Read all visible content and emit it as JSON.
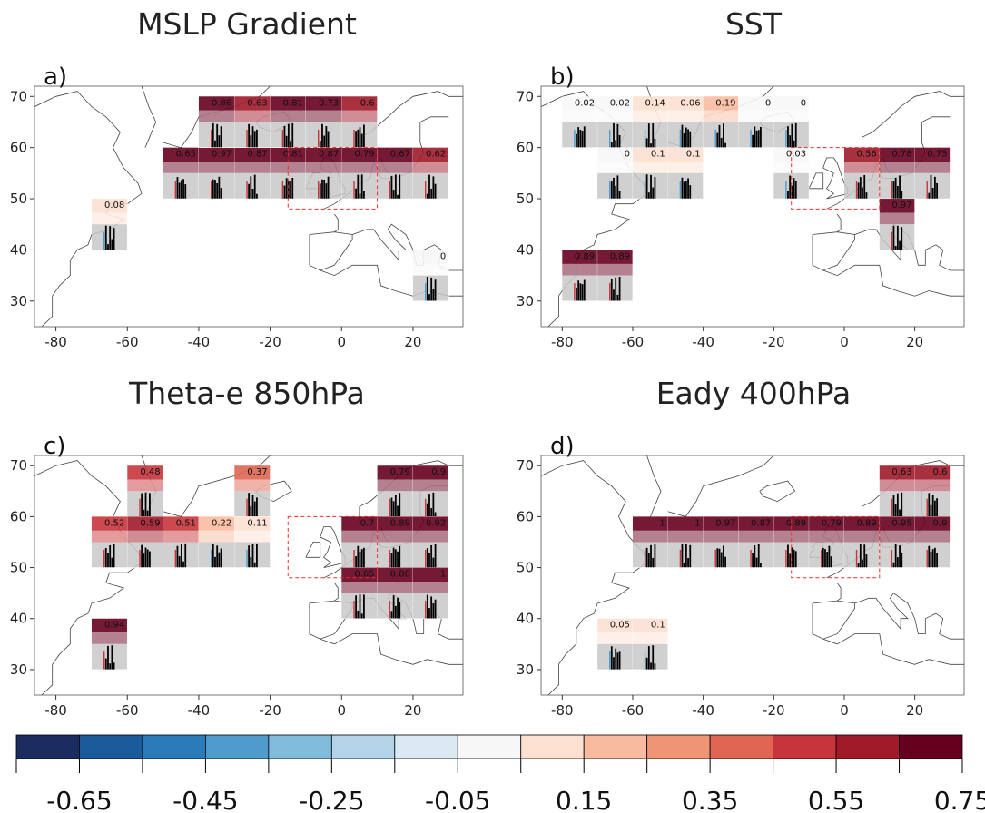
{
  "figure": {
    "panel_titles": [
      "MSLP Gradient",
      "SST",
      "Theta-e 850hPa",
      "Eady 400hPa"
    ],
    "panel_letters": [
      "a)",
      "b)",
      "c)",
      "d)"
    ]
  },
  "chart_data": {
    "type": "heatmap",
    "description_free": true,
    "lon_ticks": [
      -80,
      -60,
      -40,
      -20,
      0,
      20
    ],
    "lat_ticks": [
      30,
      40,
      50,
      60,
      70
    ],
    "xlim": [
      -86,
      34
    ],
    "ylim": [
      25,
      72
    ],
    "colorbar": {
      "ticks": [
        "-0.65",
        "-0.45",
        "-0.25",
        "-0.05",
        "0.15",
        "0.35",
        "0.55",
        "0.75"
      ],
      "colors": [
        "#1b2c61",
        "#1b5b9b",
        "#2b7bba",
        "#4f9bcb",
        "#82bcdc",
        "#b3d4e8",
        "#dbe9f3",
        "#f7f7f7",
        "#fce0d0",
        "#f9bba0",
        "#f09476",
        "#de6653",
        "#c7353c",
        "#a01a2a",
        "#67001f"
      ],
      "edges": [
        -0.75,
        -0.65,
        -0.55,
        -0.45,
        -0.35,
        -0.25,
        -0.15,
        -0.05,
        0.05,
        0.15,
        0.25,
        0.35,
        0.45,
        0.55,
        0.65,
        0.75
      ]
    },
    "panels": [
      {
        "title": "MSLP Gradient",
        "letter": "a)",
        "target_box": {
          "lon": [
            -15,
            10
          ],
          "lat": [
            48,
            60
          ]
        },
        "cells": [
          {
            "lon": -50,
            "lat": 55,
            "value": 0.65
          },
          {
            "lon": -40,
            "lat": 55,
            "value": 0.97
          },
          {
            "lon": -30,
            "lat": 55,
            "value": 0.87
          },
          {
            "lon": -20,
            "lat": 55,
            "value": 0.81
          },
          {
            "lon": -10,
            "lat": 55,
            "value": 0.87
          },
          {
            "lon": 0,
            "lat": 55,
            "value": 0.79
          },
          {
            "lon": 10,
            "lat": 55,
            "value": 0.67
          },
          {
            "lon": 20,
            "lat": 55,
            "value": 0.62
          },
          {
            "lon": -40,
            "lat": 65,
            "value": 0.86
          },
          {
            "lon": -30,
            "lat": 65,
            "value": 0.63
          },
          {
            "lon": -20,
            "lat": 65,
            "value": 0.81
          },
          {
            "lon": -10,
            "lat": 65,
            "value": 0.73
          },
          {
            "lon": 0,
            "lat": 65,
            "value": 0.6
          },
          {
            "lon": -70,
            "lat": 45,
            "value": 0.08
          },
          {
            "lon": 20,
            "lat": 35,
            "value": 0
          }
        ]
      },
      {
        "title": "SST",
        "letter": "b)",
        "target_box": {
          "lon": [
            -15,
            10
          ],
          "lat": [
            48,
            60
          ]
        },
        "cells": [
          {
            "lon": -80,
            "lat": 65,
            "value": 0.02
          },
          {
            "lon": -70,
            "lat": 65,
            "value": 0.02
          },
          {
            "lon": -60,
            "lat": 65,
            "value": 0.14
          },
          {
            "lon": -50,
            "lat": 65,
            "value": 0.06
          },
          {
            "lon": -40,
            "lat": 65,
            "value": 0.19
          },
          {
            "lon": -30,
            "lat": 65,
            "value": 0
          },
          {
            "lon": -20,
            "lat": 65,
            "value": 0
          },
          {
            "lon": -70,
            "lat": 55,
            "value": 0
          },
          {
            "lon": -60,
            "lat": 55,
            "value": 0.1
          },
          {
            "lon": -50,
            "lat": 55,
            "value": 0.1
          },
          {
            "lon": -20,
            "lat": 55,
            "value": 0.03
          },
          {
            "lon": 0,
            "lat": 55,
            "value": 0.56
          },
          {
            "lon": 10,
            "lat": 55,
            "value": 0.78
          },
          {
            "lon": 20,
            "lat": 55,
            "value": 0.75
          },
          {
            "lon": 10,
            "lat": 45,
            "value": 0.97
          },
          {
            "lon": -80,
            "lat": 35,
            "value": 0.89
          },
          {
            "lon": -70,
            "lat": 35,
            "value": 0.89
          }
        ]
      },
      {
        "title": "Theta-e 850hPa",
        "letter": "c)",
        "target_box": {
          "lon": [
            -15,
            10
          ],
          "lat": [
            48,
            60
          ]
        },
        "cells": [
          {
            "lon": -60,
            "lat": 65,
            "value": 0.48
          },
          {
            "lon": -30,
            "lat": 65,
            "value": 0.37
          },
          {
            "lon": -70,
            "lat": 55,
            "value": 0.52
          },
          {
            "lon": -60,
            "lat": 55,
            "value": 0.59
          },
          {
            "lon": -50,
            "lat": 55,
            "value": 0.51
          },
          {
            "lon": -40,
            "lat": 55,
            "value": 0.22
          },
          {
            "lon": -30,
            "lat": 55,
            "value": 0.11
          },
          {
            "lon": 10,
            "lat": 65,
            "value": 0.79
          },
          {
            "lon": 20,
            "lat": 65,
            "value": 0.9
          },
          {
            "lon": 0,
            "lat": 55,
            "value": 0.7
          },
          {
            "lon": 10,
            "lat": 55,
            "value": 0.89
          },
          {
            "lon": 20,
            "lat": 55,
            "value": 0.92
          },
          {
            "lon": 0,
            "lat": 45,
            "value": 0.65
          },
          {
            "lon": 10,
            "lat": 45,
            "value": 0.86
          },
          {
            "lon": 20,
            "lat": 45,
            "value": 1
          },
          {
            "lon": -70,
            "lat": 35,
            "value": 0.94
          }
        ]
      },
      {
        "title": "Eady 400hPa",
        "letter": "d)",
        "target_box": {
          "lon": [
            -15,
            10
          ],
          "lat": [
            48,
            60
          ]
        },
        "cells": [
          {
            "lon": 10,
            "lat": 65,
            "value": 0.63
          },
          {
            "lon": 20,
            "lat": 65,
            "value": 0.6
          },
          {
            "lon": -60,
            "lat": 55,
            "value": 1
          },
          {
            "lon": -50,
            "lat": 55,
            "value": 1
          },
          {
            "lon": -40,
            "lat": 55,
            "value": 0.97
          },
          {
            "lon": -30,
            "lat": 55,
            "value": 0.87
          },
          {
            "lon": -20,
            "lat": 55,
            "value": 0.89
          },
          {
            "lon": -10,
            "lat": 55,
            "value": 0.79
          },
          {
            "lon": 0,
            "lat": 55,
            "value": 0.89
          },
          {
            "lon": 10,
            "lat": 55,
            "value": 0.95
          },
          {
            "lon": 20,
            "lat": 55,
            "value": 0.9
          },
          {
            "lon": -70,
            "lat": 35,
            "value": 0.05
          },
          {
            "lon": -60,
            "lat": 35,
            "value": 0.1
          }
        ]
      }
    ]
  }
}
